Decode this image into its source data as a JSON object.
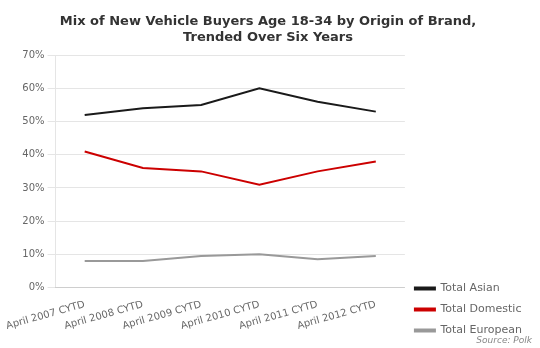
{
  "chart_data": {
    "type": "line",
    "title": "Mix of New Vehicle Buyers Age 18-34 by Origin of Brand,\nTrended Over Six Years",
    "categories": [
      "April 2007 CYTD",
      "April 2008 CYTD",
      "April 2009 CYTD",
      "April 2010 CYTD",
      "April 2011 CYTD",
      "April 2012 CYTD"
    ],
    "series": [
      {
        "name": "Total Asian",
        "color": "#1a1a1a",
        "values": [
          0.52,
          0.54,
          0.55,
          0.6,
          0.56,
          0.53
        ]
      },
      {
        "name": "Total Domestic",
        "color": "#cc0000",
        "values": [
          0.41,
          0.36,
          0.35,
          0.31,
          0.35,
          0.38
        ]
      },
      {
        "name": "Total European",
        "color": "#999999",
        "values": [
          0.08,
          0.08,
          0.095,
          0.1,
          0.085,
          0.095
        ]
      }
    ],
    "ylim": [
      0,
      0.7
    ],
    "yticks": [
      {
        "value": 0.0,
        "label": "0%"
      },
      {
        "value": 0.1,
        "label": "10%"
      },
      {
        "value": 0.2,
        "label": "20%"
      },
      {
        "value": 0.3,
        "label": "30%"
      },
      {
        "value": 0.4,
        "label": "40%"
      },
      {
        "value": 0.5,
        "label": "50%"
      },
      {
        "value": 0.6,
        "label": "60%"
      },
      {
        "value": 0.7,
        "label": "70%"
      }
    ],
    "grid": true,
    "legend": "lower right",
    "annotation": "Source: Polk"
  }
}
